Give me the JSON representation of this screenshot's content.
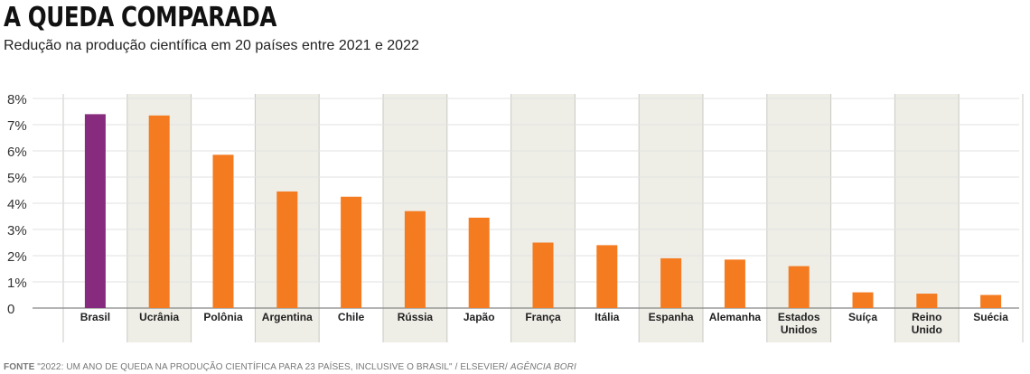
{
  "header": {
    "title": "A QUEDA COMPARADA",
    "subtitle": "Redução na produção científica em 20 países entre 2021 e 2022"
  },
  "source": {
    "label": "FONTE",
    "text": "\"2022: UM ANO DE QUEDA NA PRODUÇÃO CIENTÍFICA PARA 23 PAÍSES, INCLUSIVE O BRASIL\" / ELSEVIER/",
    "italic": "AGÊNCIA BORI"
  },
  "chart_data": {
    "type": "bar",
    "title": "A QUEDA COMPARADA",
    "subtitle": "Redução na produção científica em 20 países entre 2021 e 2022",
    "categories": [
      "Brasil",
      "Ucrânia",
      "Polônia",
      "Argentina",
      "Chile",
      "Rússia",
      "Japão",
      "França",
      "Itália",
      "Espanha",
      "Alemanha",
      "Estados Unidos",
      "Suíça",
      "Reino Unido",
      "Suécia"
    ],
    "values": [
      7.4,
      7.35,
      5.85,
      4.45,
      4.25,
      3.7,
      3.45,
      2.5,
      2.4,
      1.9,
      1.85,
      1.6,
      0.6,
      0.55,
      0.5
    ],
    "ylim": [
      0,
      8
    ],
    "yticks": [
      0,
      1,
      2,
      3,
      4,
      5,
      6,
      7,
      8
    ],
    "ytick_labels": [
      "0",
      "1%",
      "2%",
      "3%",
      "4%",
      "5%",
      "6%",
      "7%",
      "8%"
    ],
    "grid": true,
    "colors": {
      "highlight": "#862b7e",
      "bar": "#f47b20",
      "band": "#eeede6",
      "grid": "#e2e2e2",
      "axis": "#888888"
    },
    "highlight_index": 0
  }
}
